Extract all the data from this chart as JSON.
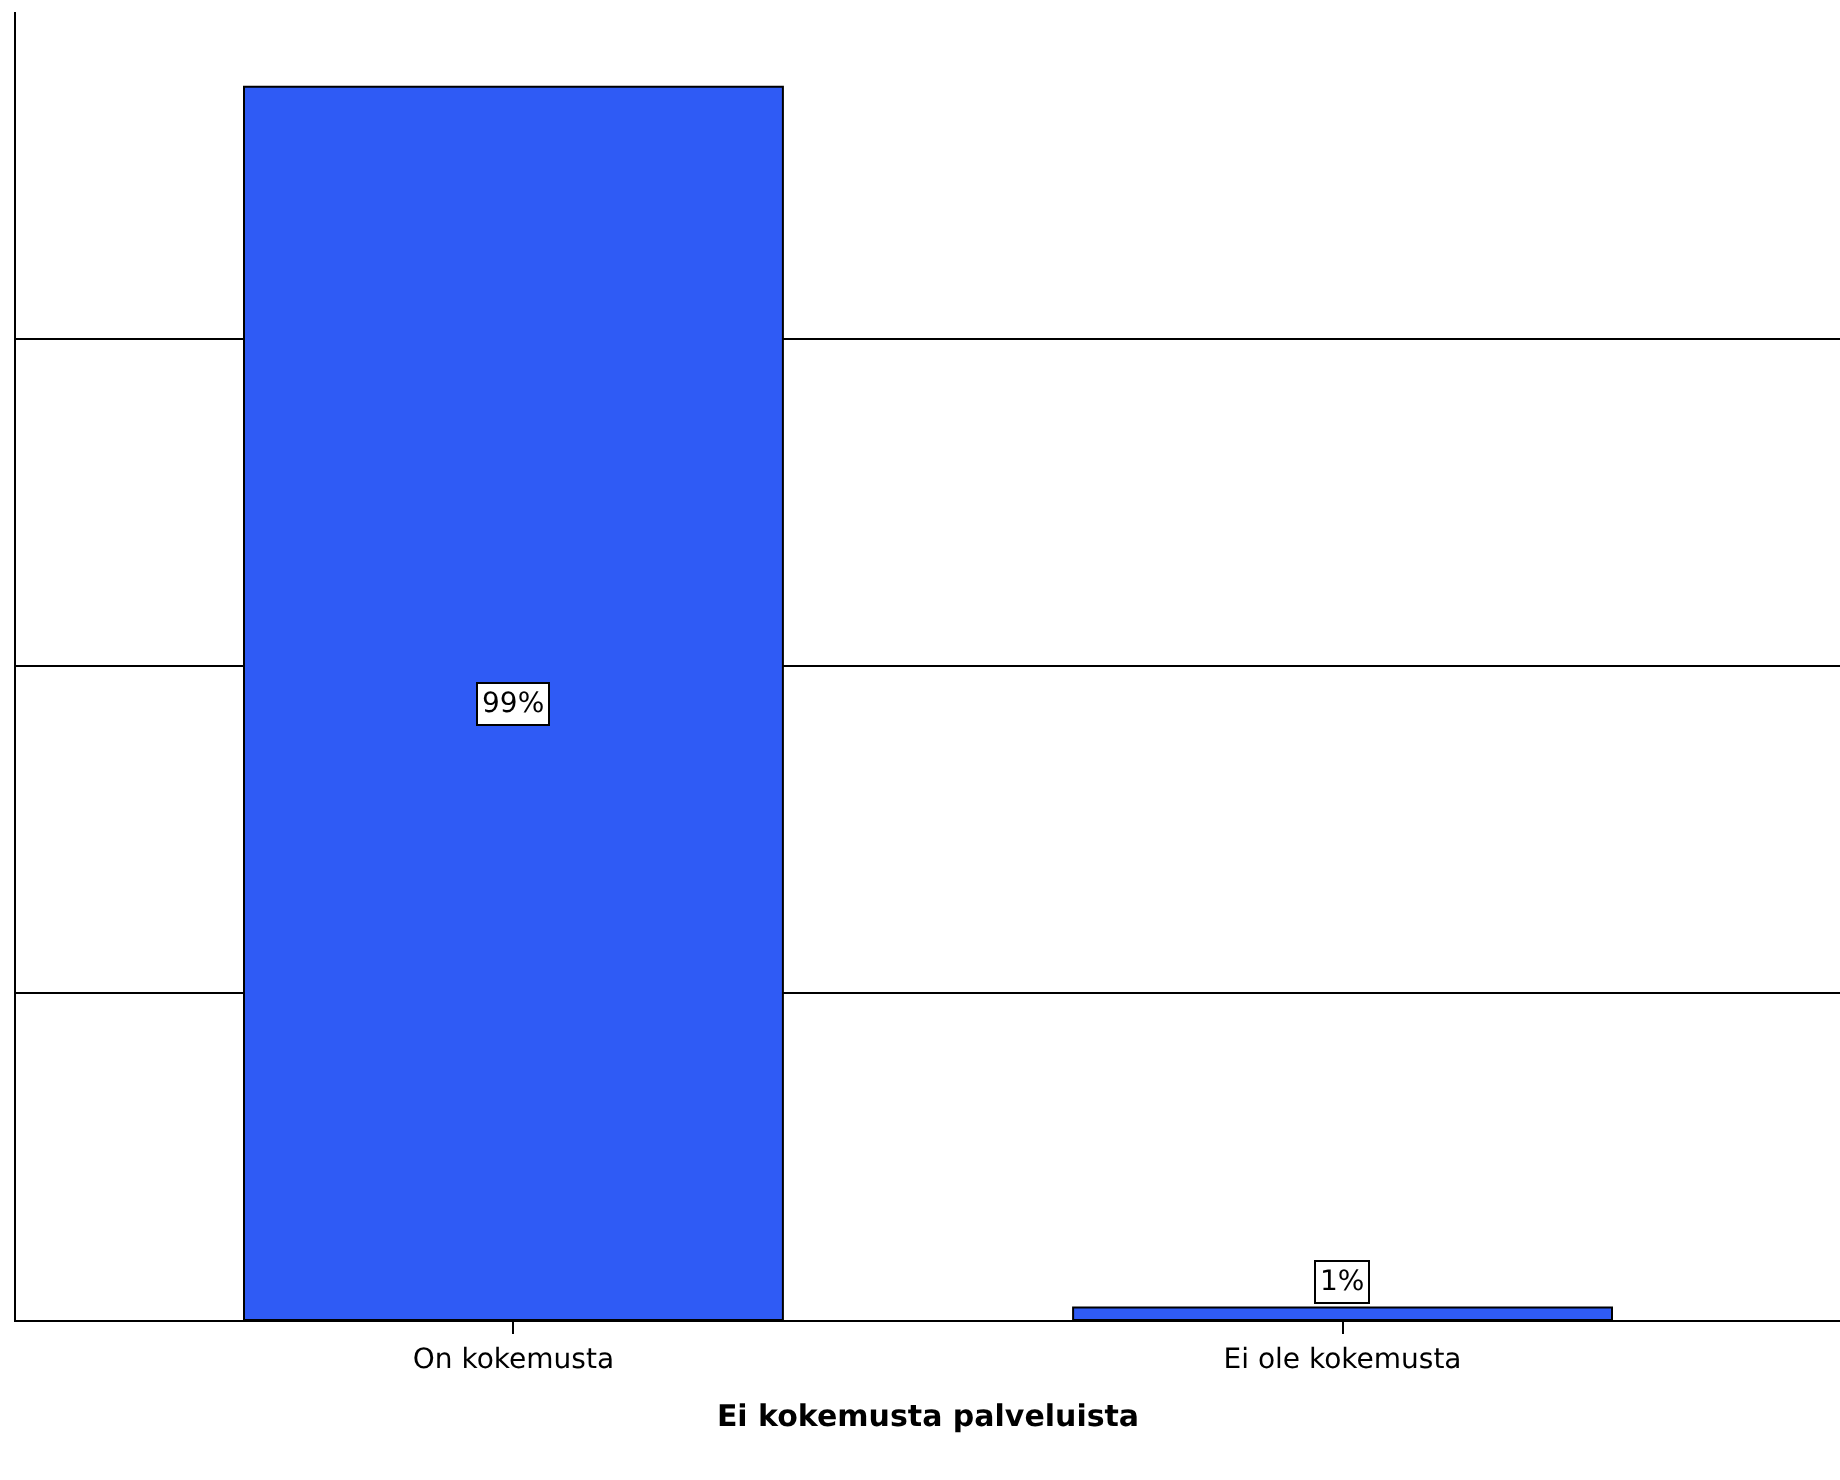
{
  "chart_data": {
    "type": "bar",
    "xlabel": "Ei kokemusta palveluista",
    "categories": [
      "On kokemusta",
      "Ei ole kokemusta"
    ],
    "values": [
      99,
      1
    ],
    "value_labels": [
      "99%",
      "1%"
    ],
    "color": "#2f5bf5",
    "ylim": [
      0,
      105
    ],
    "yticks": [
      {
        "value": 26.25,
        "label": null
      },
      {
        "value": 52.5,
        "label": null
      },
      {
        "value": 78.75,
        "label": null
      }
    ],
    "grid": "y",
    "tick_labels": "x"
  }
}
